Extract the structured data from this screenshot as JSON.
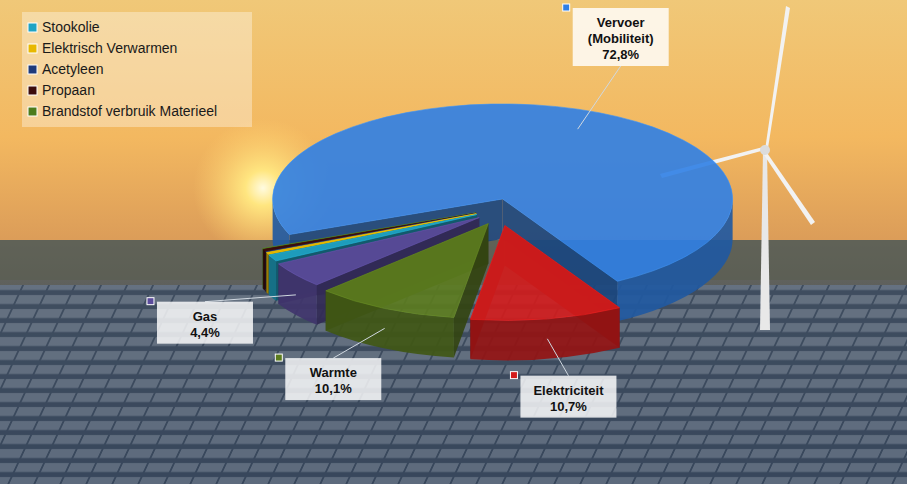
{
  "chart_data": {
    "type": "pie",
    "categories": [
      "Vervoer (Mobiliteit)",
      "Elektriciteit",
      "Warmte",
      "Gas",
      "Stookolie",
      "Elektrisch Verwarmen",
      "Acetyleen",
      "Propaan",
      "Brandstof verbruik Materieel"
    ],
    "values": [
      72.8,
      10.7,
      10.1,
      4.4,
      1.1,
      0.3,
      0.1,
      0.4,
      0.1
    ],
    "value_labels": [
      "72,8%",
      "10,7%",
      "10,1%",
      "4,4%",
      null,
      null,
      null,
      null,
      null
    ],
    "colors": [
      "#2f7fe6",
      "#d41c1c",
      "#5c7c1e",
      "#5b4c9c",
      "#1fa3c4",
      "#e8b800",
      "#1f3a7a",
      "#3c0c0c",
      "#4c7c1c"
    ],
    "data_labels": true,
    "legend": "top-left"
  }
}
